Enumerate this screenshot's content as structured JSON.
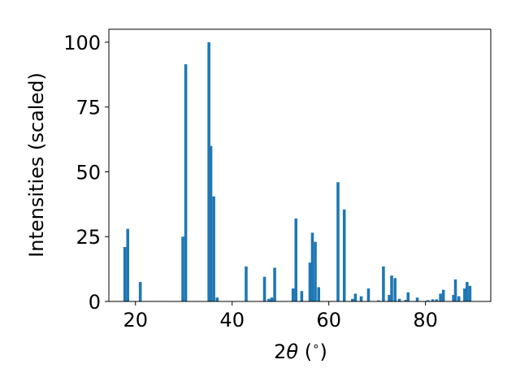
{
  "chart_data": {
    "type": "bar",
    "title": "",
    "xlabel": "2θ (°)",
    "xlabel_parts": {
      "main": "2",
      "theta": "θ",
      "unit": " (",
      "degree": "∘",
      "close": ")"
    },
    "ylabel": "Intensities (scaled)",
    "xlim": [
      14.5,
      93.5
    ],
    "ylim": [
      0,
      105
    ],
    "x_ticks": [
      20,
      40,
      60,
      80
    ],
    "y_ticks": [
      0,
      25,
      50,
      75,
      100
    ],
    "bar_width": 0.6,
    "bar_color": "#1f77b4",
    "grid": false,
    "legend": "none",
    "x": [
      17.8,
      18.4,
      21.0,
      29.8,
      30.4,
      35.2,
      35.6,
      36.2,
      36.9,
      42.9,
      46.7,
      47.6,
      48.2,
      48.8,
      52.6,
      53.2,
      54.4,
      56.1,
      56.6,
      57.2,
      57.9,
      61.9,
      63.2,
      64.9,
      65.5,
      66.7,
      68.2,
      70.3,
      71.3,
      72.5,
      73.0,
      73.7,
      74.6,
      75.9,
      76.4,
      78.3,
      80.5,
      81.5,
      82.3,
      83.1,
      83.7,
      85.8,
      86.2,
      86.9,
      88.1,
      88.6,
      89.2
    ],
    "values": [
      21,
      28,
      7.5,
      25,
      91.5,
      100,
      60,
      40.5,
      1.5,
      13.5,
      9.5,
      1,
      1.5,
      13,
      5,
      32,
      4,
      15,
      26.5,
      23,
      5.5,
      46,
      35.5,
      1,
      3,
      2,
      5,
      0.4,
      13.5,
      2.5,
      10,
      9,
      1,
      0.6,
      3.5,
      1.5,
      0.5,
      0.8,
      0.8,
      3,
      4.5,
      2.5,
      8.5,
      2,
      5,
      7.5,
      6
    ]
  }
}
